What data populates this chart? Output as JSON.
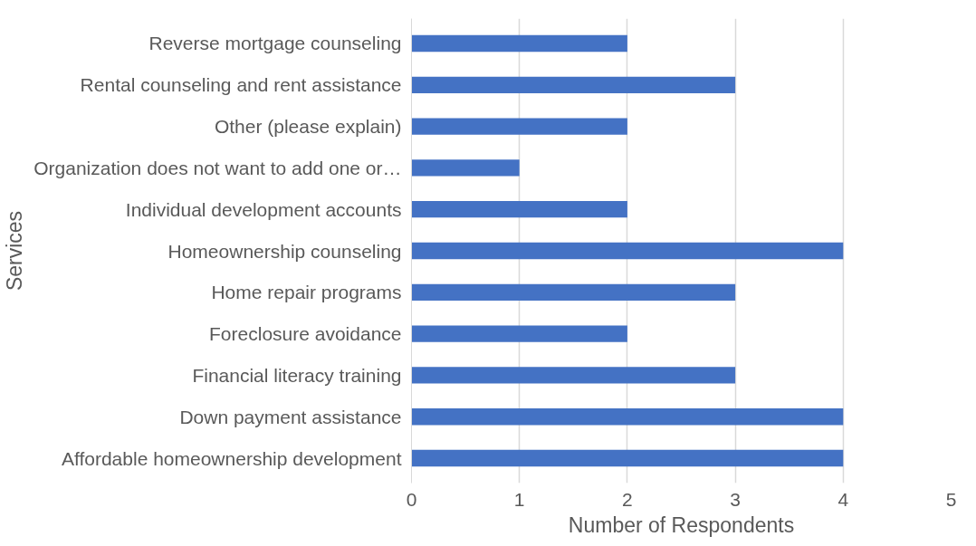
{
  "chart_data": {
    "type": "bar",
    "orientation": "horizontal",
    "xlabel": "Number of Respondents",
    "ylabel": "Services",
    "categories": [
      "Reverse mortgage counseling",
      "Rental counseling and rent assistance",
      "Other (please explain)",
      "Organization does not want to add one or…",
      "Individual development accounts",
      "Homeownership counseling",
      "Home repair programs",
      "Foreclosure avoidance",
      "Financial literacy training",
      "Down payment assistance",
      "Affordable homeownership development"
    ],
    "values": [
      2,
      3,
      2,
      1,
      2,
      4,
      3,
      2,
      3,
      4,
      4
    ],
    "color": "#4472c4",
    "xlim": [
      0,
      5
    ],
    "xticks": [
      0,
      1,
      2,
      3,
      4,
      5
    ],
    "grid": "x"
  }
}
